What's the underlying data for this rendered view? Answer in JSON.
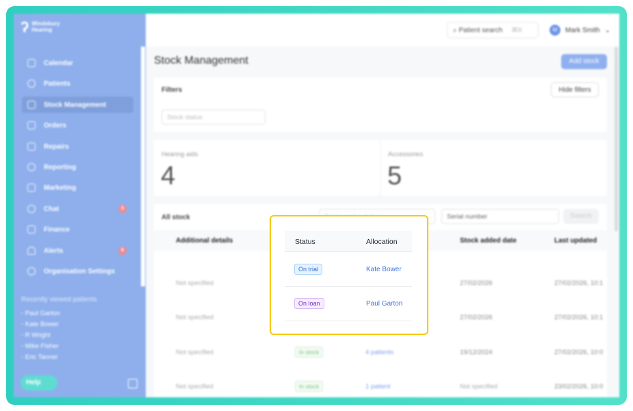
{
  "brand": {
    "name_line1": "Windsbury",
    "name_line2": "Hearing"
  },
  "sidebar": {
    "items": [
      {
        "label": "Calendar",
        "icon": "calendar-icon"
      },
      {
        "label": "Patients",
        "icon": "smiley-icon"
      },
      {
        "label": "Stock Management",
        "icon": "clipboard-icon",
        "active": true
      },
      {
        "label": "Orders",
        "icon": "inbox-icon"
      },
      {
        "label": "Repairs",
        "icon": "wrench-icon"
      },
      {
        "label": "Reporting",
        "icon": "pie-chart-icon"
      },
      {
        "label": "Marketing",
        "icon": "mail-icon"
      },
      {
        "label": "Chat",
        "icon": "chat-icon",
        "badge": "3"
      },
      {
        "label": "Finance",
        "icon": "card-icon"
      },
      {
        "label": "Alerts",
        "icon": "bell-icon",
        "badge": "6"
      },
      {
        "label": "Organisation Settings",
        "icon": "gear-icon"
      }
    ],
    "recent_title": "Recently viewed patients",
    "recent": [
      "- Paul Garton",
      "- Kate Bower",
      "- R Wright",
      "- Mike Fisher",
      "- Eric Tanner"
    ],
    "help": "Help"
  },
  "topbar": {
    "search": "Patient search",
    "shortcut": "⌘K",
    "user": "Mark Smith",
    "avatar": "M"
  },
  "page": {
    "title": "Stock Management",
    "add": "Add stock"
  },
  "filters": {
    "title": "Filters",
    "hide": "Hide filters",
    "status_placeholder": "Stock status"
  },
  "stats": [
    {
      "label": "Hearing aids",
      "value": "4"
    },
    {
      "label": "Accessories",
      "value": "5"
    }
  ],
  "stock": {
    "title": "All stock",
    "lookup_placeholder": "Serial number lookup",
    "lookup_type": "Serial number",
    "search": "Search",
    "columns": [
      "Additional details",
      "Status",
      "Allocation",
      "Stock added date",
      "Last updated"
    ],
    "rows": [
      {
        "details": "Not specified",
        "status": "On trial",
        "allocation": "Kate Bower",
        "added": "27/02/2026",
        "updated": "27/02/2026, 10:1"
      },
      {
        "details": "Not specified",
        "status": "On loan",
        "allocation": "Paul Garton",
        "added": "27/02/2026",
        "updated": "27/02/2026, 10:1"
      },
      {
        "details": "Not specified",
        "status": "In stock",
        "allocation": "4 patients",
        "added": "19/12/2024",
        "updated": "27/02/2026, 10:0"
      },
      {
        "details": "Not specified",
        "status": "In stock",
        "allocation": "1 patient",
        "added": "Not specified",
        "updated": "23/02/2026, 10:0"
      }
    ]
  },
  "colors": {
    "accent": "#3f74e0",
    "sidebar": "#8eafec",
    "highlight": "#f6c90e",
    "frame": "#2fcfc0"
  }
}
